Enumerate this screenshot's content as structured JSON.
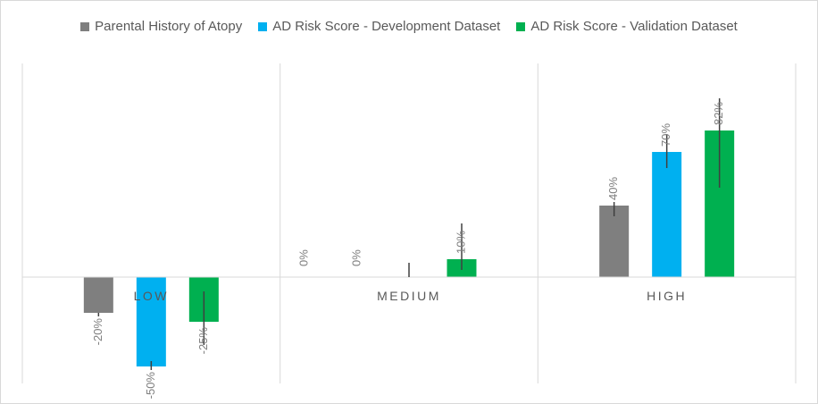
{
  "chart_data": {
    "type": "bar",
    "categories": [
      "LOW",
      "MEDIUM",
      "HIGH"
    ],
    "series": [
      {
        "name": "Parental History of Atopy",
        "color": "#7f7f7f",
        "values": [
          -0.2,
          0.0,
          0.4
        ],
        "labels": [
          "-20%",
          "0%",
          "40%"
        ],
        "err": [
          [
            -0.2,
            -0.22
          ],
          [
            0.0,
            0.0
          ],
          [
            0.34,
            0.42
          ]
        ]
      },
      {
        "name": "AD Risk Score - Development Dataset",
        "color": "#00b0f0",
        "values": [
          -0.5,
          0.0,
          0.7
        ],
        "labels": [
          "-50%",
          "0%",
          "70%"
        ],
        "err": [
          [
            -0.47,
            -0.52
          ],
          [
            0.0,
            0.08
          ],
          [
            0.61,
            0.8
          ]
        ]
      },
      {
        "name": "AD Risk Score - Validation Dataset",
        "color": "#00b050",
        "values": [
          -0.25,
          0.1,
          0.82
        ],
        "labels": [
          "-25%",
          "10%",
          "82%"
        ],
        "err": [
          [
            -0.08,
            -0.38
          ],
          [
            0.04,
            0.3
          ],
          [
            0.5,
            1.0
          ]
        ]
      }
    ],
    "ylim": [
      -0.6,
      1.2
    ],
    "grid": "vertical",
    "legend": "top"
  }
}
